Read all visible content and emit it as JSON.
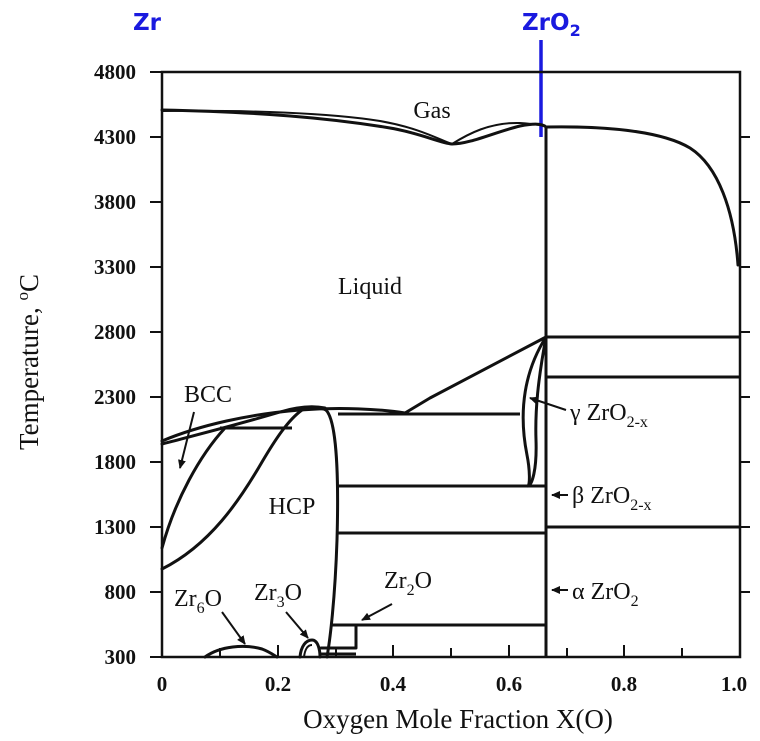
{
  "markers": {
    "zr": "Zr",
    "zro2_main": "ZrO",
    "zro2_sub": "2",
    "color": "#1a1adf"
  },
  "axes": {
    "xlabel": "Oxygen Mole Fraction X(O)",
    "ylabel_main": "Temperature, ",
    "ylabel_deg": "o",
    "ylabel_unit": "C",
    "x_ticks": [
      "0",
      "0.2",
      "0.4",
      "0.6",
      "0.8",
      "1.0"
    ],
    "y_ticks": [
      "4800",
      "4300",
      "3800",
      "3300",
      "2800",
      "2300",
      "1800",
      "1300",
      "800",
      "300"
    ]
  },
  "regions": {
    "gas": "Gas",
    "liquid": "Liquid",
    "bcc": "BCC",
    "hcp": "HCP"
  },
  "phase_labels": {
    "gamma": {
      "prefix": "γ ZrO",
      "sub": "2-x"
    },
    "beta": {
      "prefix": "β ZrO",
      "sub": "2-x"
    },
    "alpha": {
      "prefix": "α ZrO",
      "sub": "2"
    },
    "zr6o": {
      "a": "Zr",
      "sub": "6",
      "b": "O"
    },
    "zr3o": {
      "a": "Zr",
      "sub": "3",
      "b": "O"
    },
    "zr2o": {
      "a": "Zr",
      "sub": "2",
      "b": "O"
    }
  }
}
